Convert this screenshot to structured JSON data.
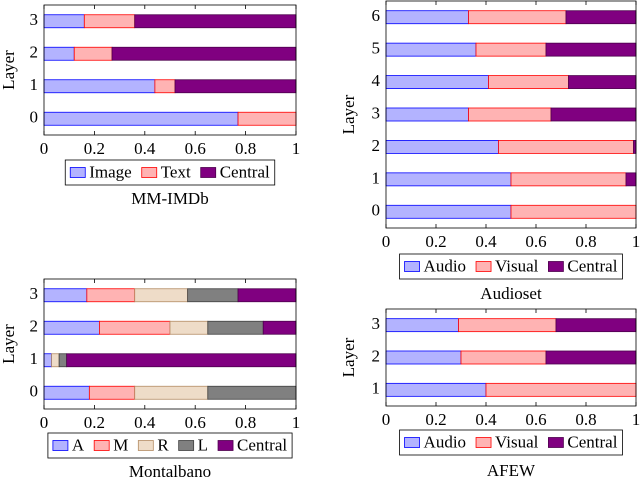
{
  "chart_data": [
    {
      "type": "stacked-barh",
      "title": "MM-IMDb",
      "ylabel": "Layer",
      "categories": [
        "0",
        "1",
        "2",
        "3"
      ],
      "series": [
        {
          "name": "Image",
          "color": "#b3b3ff",
          "edgecolor": "#0000ff",
          "values": [
            0.77,
            0.44,
            0.12,
            0.16
          ]
        },
        {
          "name": "Text",
          "color": "#ffb3b3",
          "edgecolor": "#ff0000",
          "values": [
            0.23,
            0.08,
            0.15,
            0.2
          ]
        },
        {
          "name": "Central",
          "color": "#800080",
          "edgecolor": "#4d004d",
          "values": [
            0,
            0.48,
            0.73,
            0.64
          ]
        }
      ],
      "xlim": [
        0,
        1
      ],
      "xticks": [
        0,
        0.2,
        0.4,
        0.6,
        0.8,
        1
      ]
    },
    {
      "type": "stacked-barh",
      "title": "Audioset",
      "ylabel": "Layer",
      "categories": [
        "0",
        "1",
        "2",
        "3",
        "4",
        "5",
        "6"
      ],
      "series": [
        {
          "name": "Audio",
          "color": "#b3b3ff",
          "edgecolor": "#0000ff",
          "values": [
            0.5,
            0.5,
            0.45,
            0.33,
            0.41,
            0.36,
            0.33
          ]
        },
        {
          "name": "Visual",
          "color": "#ffb3b3",
          "edgecolor": "#ff0000",
          "values": [
            0.5,
            0.46,
            0.54,
            0.33,
            0.32,
            0.28,
            0.39
          ]
        },
        {
          "name": "Central",
          "color": "#800080",
          "edgecolor": "#4d004d",
          "values": [
            0,
            0.04,
            0.01,
            0.34,
            0.27,
            0.36,
            0.28
          ]
        }
      ],
      "xlim": [
        0,
        1
      ],
      "xticks": [
        0,
        0.2,
        0.4,
        0.6,
        0.8,
        1
      ]
    },
    {
      "type": "stacked-barh",
      "title": "Montalbano",
      "ylabel": "Layer",
      "categories": [
        "0",
        "1",
        "2",
        "3"
      ],
      "series": [
        {
          "name": "A",
          "color": "#b3b3ff",
          "edgecolor": "#0000ff",
          "values": [
            0.18,
            0.03,
            0.22,
            0.17
          ]
        },
        {
          "name": "M",
          "color": "#ffb3b3",
          "edgecolor": "#ff0000",
          "values": [
            0.18,
            0,
            0.28,
            0.19
          ]
        },
        {
          "name": "R",
          "color": "#eedcc8",
          "edgecolor": "#b48c64",
          "values": [
            0.29,
            0.03,
            0.15,
            0.21
          ]
        },
        {
          "name": "L",
          "color": "#808080",
          "edgecolor": "#404040",
          "values": [
            0.35,
            0.03,
            0.22,
            0.2
          ]
        },
        {
          "name": "Central",
          "color": "#800080",
          "edgecolor": "#4d004d",
          "values": [
            0,
            0.91,
            0.13,
            0.23
          ]
        }
      ],
      "xlim": [
        0,
        1
      ],
      "xticks": [
        0,
        0.2,
        0.4,
        0.6,
        0.8,
        1
      ]
    },
    {
      "type": "stacked-barh",
      "title": "AFEW",
      "ylabel": "Layer",
      "categories": [
        "1",
        "2",
        "3"
      ],
      "series": [
        {
          "name": "Audio",
          "color": "#b3b3ff",
          "edgecolor": "#0000ff",
          "values": [
            0.4,
            0.3,
            0.29
          ]
        },
        {
          "name": "Visual",
          "color": "#ffb3b3",
          "edgecolor": "#ff0000",
          "values": [
            0.6,
            0.34,
            0.39
          ]
        },
        {
          "name": "Central",
          "color": "#800080",
          "edgecolor": "#4d004d",
          "values": [
            0,
            0.36,
            0.32
          ]
        }
      ],
      "xlim": [
        0,
        1
      ],
      "xticks": [
        0,
        0.2,
        0.4,
        0.6,
        0.8,
        1
      ]
    }
  ]
}
